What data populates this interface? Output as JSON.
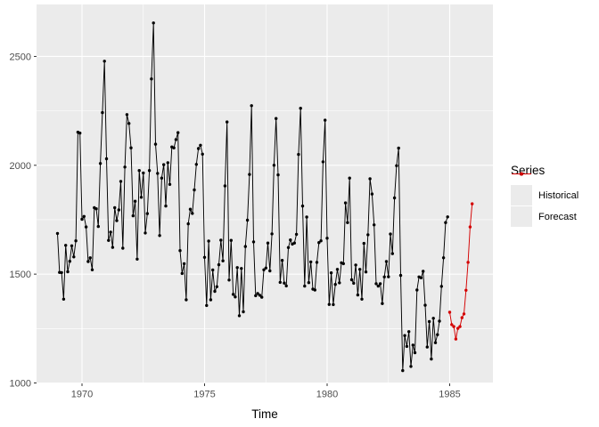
{
  "figure": {
    "background": "#ffffff"
  },
  "panel": {
    "background": "#ebebeb",
    "grid_color": "#ffffff",
    "tick_color": "#333333",
    "axis_text_color": "#4d4d4d"
  },
  "legend": {
    "title": "Series",
    "key_fill": "#ebebeb",
    "items": [
      {
        "label": "Historical",
        "color": "#000000"
      },
      {
        "label": "Forecast",
        "color": "#d40000"
      }
    ]
  },
  "chart_data": {
    "type": "line",
    "title": "",
    "xlabel": "Time",
    "ylabel": "",
    "grid": "on",
    "legend_position": "right",
    "xlim": [
      1968.15,
      1986.76
    ],
    "ylim": [
      977,
      2734
    ],
    "x_ticks": [
      1970,
      1975,
      1980,
      1985
    ],
    "x_tick_labels": [
      "1970",
      "1975",
      "1980",
      "1985"
    ],
    "x_minor_ticks": [
      1972.5,
      1977.5,
      1982.5
    ],
    "y_ticks": [
      1000,
      1500,
      2000,
      2500
    ],
    "y_tick_labels": [
      "1000",
      "1500",
      "2000",
      "2500"
    ],
    "y_minor_ticks": [
      1250,
      1750,
      2250
    ],
    "frequency_note": "monthly time series, x in decimal years",
    "series": [
      {
        "name": "Historical",
        "color": "#000000",
        "start": 1969.0,
        "frequency": 12,
        "values": [
          [
            1687,
            1508,
            1507,
            1385,
            1632,
            1511,
            1559,
            1630,
            1579,
            1653,
            2152,
            2148
          ],
          [
            1752,
            1765,
            1717,
            1558,
            1575,
            1520,
            1805,
            1800,
            1719,
            2008,
            2242,
            2478
          ],
          [
            2030,
            1655,
            1693,
            1623,
            1805,
            1746,
            1795,
            1926,
            1619,
            1992,
            2233,
            2192
          ],
          [
            2080,
            1768,
            1835,
            1569,
            1976,
            1853,
            1965,
            1689,
            1778,
            1976,
            2397,
            2654
          ],
          [
            2097,
            1963,
            1677,
            1941,
            2003,
            1813,
            2012,
            1912,
            2084,
            2080,
            2118,
            2150
          ],
          [
            1608,
            1503,
            1548,
            1382,
            1731,
            1798,
            1779,
            1887,
            2004,
            2077,
            2092,
            2051
          ],
          [
            1577,
            1356,
            1652,
            1382,
            1519,
            1421,
            1442,
            1543,
            1656,
            1561,
            1905,
            2199
          ],
          [
            1473,
            1655,
            1407,
            1395,
            1530,
            1309,
            1526,
            1327,
            1627,
            1748,
            1958,
            2274
          ],
          [
            1648,
            1401,
            1411,
            1403,
            1394,
            1520,
            1528,
            1643,
            1515,
            1685,
            2000,
            2215
          ],
          [
            1956,
            1462,
            1563,
            1459,
            1446,
            1622,
            1657,
            1638,
            1643,
            1683,
            2050,
            2262
          ],
          [
            1813,
            1445,
            1762,
            1461,
            1556,
            1431,
            1427,
            1554,
            1645,
            1653,
            2016,
            2207
          ],
          [
            1665,
            1361,
            1506,
            1360,
            1453,
            1522,
            1460,
            1552,
            1548,
            1827,
            1737,
            1941
          ],
          [
            1474,
            1458,
            1542,
            1404,
            1522,
            1385,
            1641,
            1510,
            1681,
            1938,
            1868,
            1726
          ],
          [
            1456,
            1445,
            1456,
            1365,
            1487,
            1558,
            1488,
            1684,
            1594,
            1850,
            1998,
            2079
          ],
          [
            1494,
            1057,
            1218,
            1168,
            1236,
            1076,
            1174,
            1139,
            1427,
            1487,
            1483,
            1513
          ],
          [
            1357,
            1165,
            1282,
            1110,
            1297,
            1185,
            1222,
            1284,
            1444,
            1575,
            1737,
            1763
          ]
        ]
      },
      {
        "name": "Forecast",
        "color": "#d40000",
        "start": 1985.0,
        "frequency": 12,
        "values": [
          [
            1325,
            1268,
            1259,
            1202,
            1251,
            1259,
            1300,
            1317,
            1426,
            1554,
            1717,
            1823
          ]
        ]
      }
    ]
  }
}
